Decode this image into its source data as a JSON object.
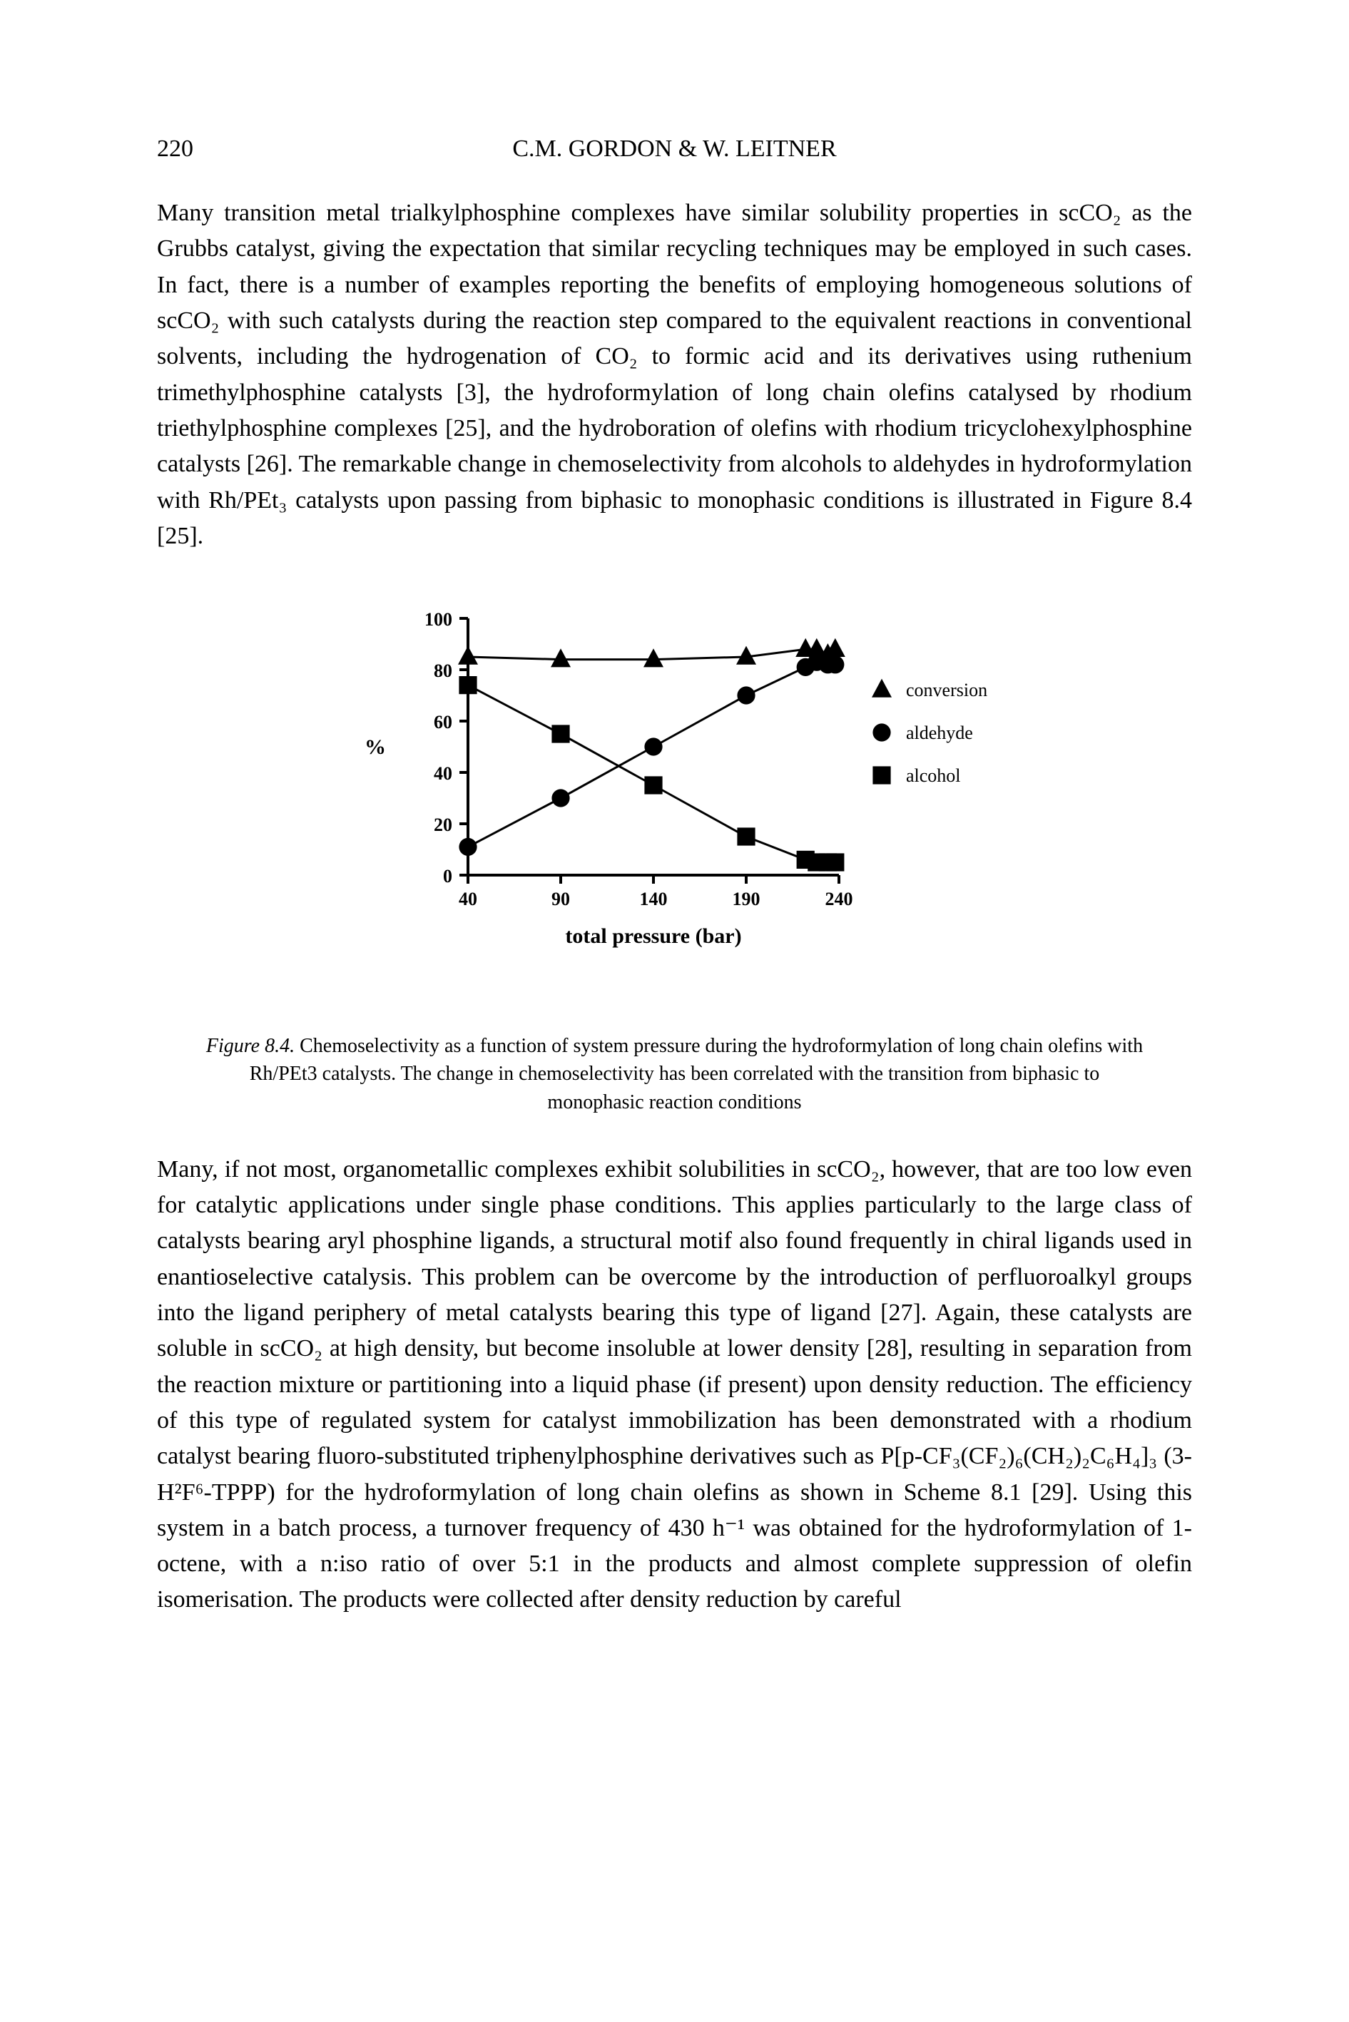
{
  "header": {
    "page_number": "220",
    "running_head": "C.M. GORDON & W. LEITNER"
  },
  "paragraphs": {
    "p1": "Many transition metal trialkylphosphine complexes have similar solubility properties in scCO₂ as the Grubbs catalyst, giving the expectation that similar recycling techniques may be employed in such cases. In fact, there is a number of examples reporting the benefits of employing homogeneous solutions of scCO₂ with such catalysts during the reaction step compared to the equivalent reactions in conventional solvents, including the hydrogenation of CO₂ to formic acid and its derivatives using ruthenium trimethylphosphine catalysts [3], the hydroformylation of long chain olefins catalysed by rhodium triethylphosphine complexes [25], and the hydroboration of olefins with rhodium tricyclohexylphosphine catalysts [26]. The remarkable change in chemoselectivity from alcohols to aldehydes in hydroformylation with Rh/PEt₃ catalysts upon passing from biphasic to monophasic conditions is illustrated in Figure 8.4 [25].",
    "p2": "Many, if not most, organometallic complexes exhibit solubilities in scCO₂, however, that are too low even for catalytic applications under single phase conditions. This applies particularly to the large class of catalysts bearing aryl phosphine ligands, a structural motif also found frequently in chiral ligands used in enantioselective catalysis. This problem can be overcome by the introduction of perfluoroalkyl groups into the ligand periphery of metal catalysts bearing this type of ligand [27]. Again, these catalysts are soluble in scCO₂ at high density, but become insoluble at lower density [28], resulting in separation from the reaction mixture or partitioning into a liquid phase (if present) upon density reduction. The efficiency of this type of regulated system for catalyst immobilization has been demonstrated with a rhodium catalyst bearing fluoro-substituted triphenylphosphine derivatives such as P[p-CF₃(CF₂)₆(CH₂)₂C₆H₄]₃ (3-H²F⁶-TPPP) for the hydroformylation of long chain olefins as shown in Scheme 8.1 [29]. Using this system in a batch process, a turnover frequency of 430 h⁻¹ was obtained for the hydroformylation of 1-octene, with a n:iso ratio of over 5:1 in the products and almost complete suppression of olefin isomerisation. The products were collected after density reduction by careful"
  },
  "figure": {
    "type": "scatter-line",
    "y_axis_label": "%",
    "x_axis_label": "total pressure (bar)",
    "xlim": [
      40,
      240
    ],
    "ylim": [
      0,
      100
    ],
    "x_ticks": [
      40,
      90,
      140,
      190,
      240
    ],
    "y_ticks": [
      0,
      20,
      40,
      60,
      80,
      100
    ],
    "tick_fontsize": 26,
    "axis_label_fontsize": 30,
    "legend_fontsize": 26,
    "background_color": "#ffffff",
    "axis_color": "#000000",
    "axis_linewidth": 4,
    "marker_size": 14,
    "line_width": 3,
    "series": {
      "conversion": {
        "label": "conversion",
        "marker": "triangle",
        "color": "#000000",
        "x": [
          40,
          90,
          140,
          190,
          222,
          228,
          234,
          238
        ],
        "y": [
          85,
          84,
          84,
          85,
          88,
          88,
          86,
          88
        ]
      },
      "aldehyde": {
        "label": "aldehyde",
        "marker": "circle",
        "color": "#000000",
        "x": [
          40,
          90,
          140,
          190,
          222,
          228,
          234,
          238
        ],
        "y": [
          11,
          30,
          50,
          70,
          81,
          83,
          82,
          82
        ]
      },
      "alcohol": {
        "label": "alcohol",
        "marker": "square",
        "color": "#000000",
        "x": [
          40,
          90,
          140,
          190,
          222,
          228,
          234,
          238
        ],
        "y": [
          74,
          55,
          35,
          15,
          6,
          5,
          5,
          5
        ]
      }
    },
    "caption_prefix": "Figure 8.4.",
    "caption_text": "Chemoselectivity as a function of system pressure during the hydroformylation of long chain olefins with Rh/PEt3 catalysts. The change in chemoselectivity has been correlated with the transition from biphasic to monophasic reaction conditions"
  }
}
